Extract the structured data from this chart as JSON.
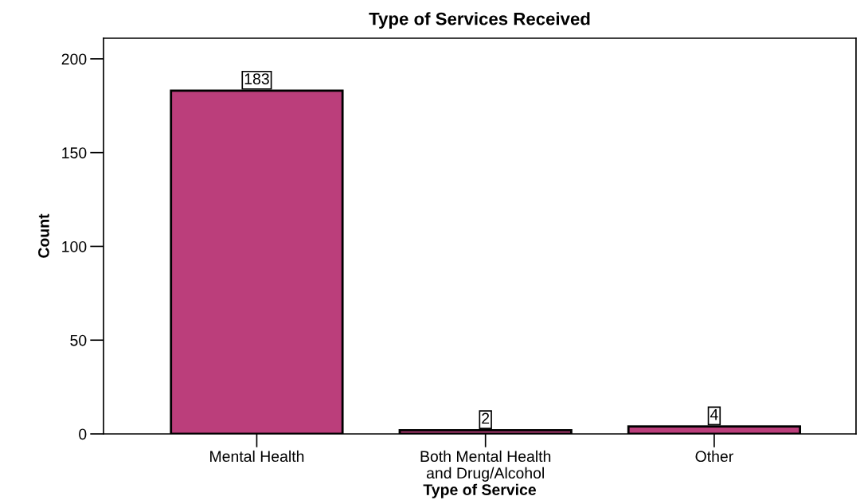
{
  "chart_data": {
    "type": "bar",
    "title": "Type of Services Received",
    "xlabel": "Type of Service",
    "ylabel": "Count",
    "categories": [
      "Mental Health",
      "Both Mental Health\nand Drug/Alcohol",
      "Other"
    ],
    "values": [
      183,
      2,
      4
    ],
    "color": "#bb3e7b",
    "ylim": [
      0,
      211
    ],
    "yticks": [
      0,
      50,
      100,
      150,
      200
    ],
    "grid": false,
    "data_labels": true
  }
}
